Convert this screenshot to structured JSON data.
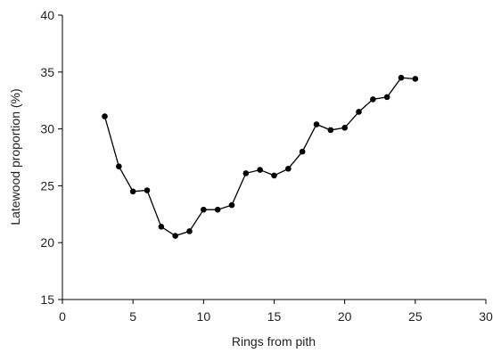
{
  "chart_data": {
    "type": "line",
    "title": "",
    "xlabel": "Rings from pith",
    "ylabel": "Latewood proportion (%)",
    "xlim": [
      0,
      30
    ],
    "ylim": [
      15,
      40
    ],
    "xticks": [
      "0",
      "5",
      "10",
      "15",
      "20",
      "25",
      "30"
    ],
    "yticks": [
      "15",
      "20",
      "25",
      "30",
      "35",
      "40"
    ],
    "grid": false,
    "series": [
      {
        "x": [
          3,
          4,
          5,
          6,
          7,
          8,
          9,
          10,
          11,
          12,
          13,
          14,
          15,
          16,
          17,
          18,
          19,
          20,
          21,
          22,
          23,
          24,
          25
        ],
        "y": [
          31.1,
          26.7,
          24.5,
          24.6,
          21.4,
          20.6,
          21.0,
          22.9,
          22.9,
          23.3,
          26.1,
          26.4,
          25.9,
          26.5,
          28.0,
          30.4,
          29.9,
          30.1,
          31.5,
          32.6,
          32.8,
          34.5,
          34.4
        ],
        "color": "#000000"
      }
    ]
  }
}
